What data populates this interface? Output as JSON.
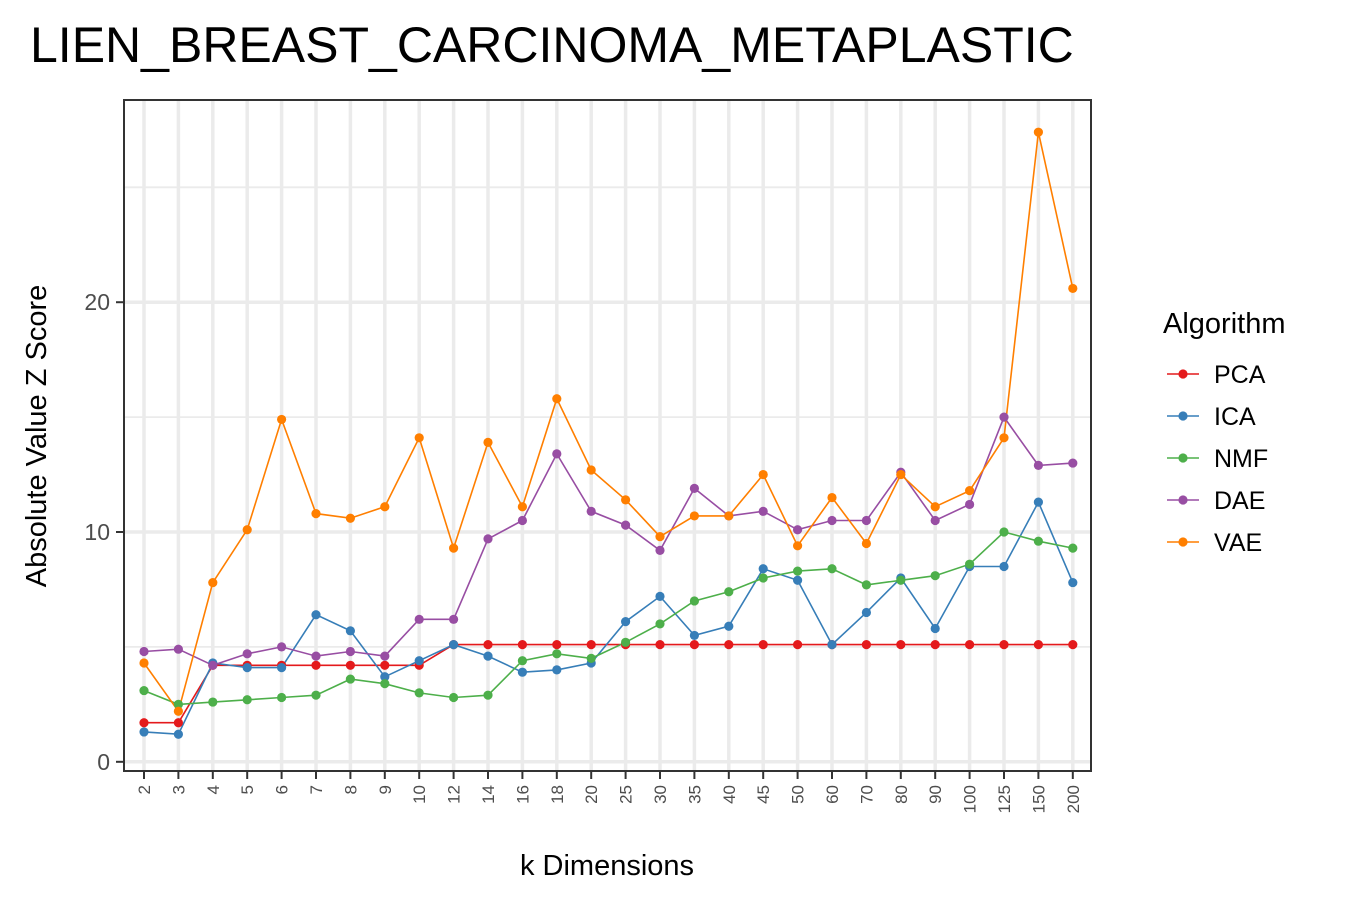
{
  "chart_data": {
    "type": "line",
    "title": "LIEN_BREAST_CARCINOMA_METAPLASTIC",
    "xlabel": "k Dimensions",
    "ylabel": "Absolute Value Z Score",
    "categories": [
      "2",
      "3",
      "4",
      "5",
      "6",
      "7",
      "8",
      "9",
      "10",
      "12",
      "14",
      "16",
      "18",
      "20",
      "25",
      "30",
      "35",
      "40",
      "45",
      "50",
      "60",
      "70",
      "80",
      "90",
      "100",
      "125",
      "150",
      "200"
    ],
    "ylim": [
      -0.4,
      28.8
    ],
    "yticks": [
      0,
      10,
      20
    ],
    "grid": true,
    "legend_title": "Algorithm",
    "legend_position": "right",
    "series": [
      {
        "name": "PCA",
        "color": "#e41a1c",
        "values": [
          1.7,
          1.7,
          4.2,
          4.2,
          4.2,
          4.2,
          4.2,
          4.2,
          4.2,
          5.1,
          5.1,
          5.1,
          5.1,
          5.1,
          5.1,
          5.1,
          5.1,
          5.1,
          5.1,
          5.1,
          5.1,
          5.1,
          5.1,
          5.1,
          5.1,
          5.1,
          5.1,
          5.1
        ]
      },
      {
        "name": "ICA",
        "color": "#377eb8",
        "values": [
          1.3,
          1.2,
          4.3,
          4.1,
          4.1,
          6.4,
          5.7,
          3.7,
          4.4,
          5.1,
          4.6,
          3.9,
          4.0,
          4.3,
          6.1,
          7.2,
          5.5,
          5.9,
          8.4,
          7.9,
          5.1,
          6.5,
          8.0,
          5.8,
          8.5,
          8.5,
          11.3,
          7.8
        ]
      },
      {
        "name": "NMF",
        "color": "#4daf4a",
        "values": [
          3.1,
          2.5,
          2.6,
          2.7,
          2.8,
          2.9,
          3.6,
          3.4,
          3.0,
          2.8,
          2.9,
          4.4,
          4.7,
          4.5,
          5.2,
          6.0,
          7.0,
          7.4,
          8.0,
          8.3,
          8.4,
          7.7,
          7.9,
          8.1,
          8.6,
          10.0,
          9.6,
          9.3
        ]
      },
      {
        "name": "DAE",
        "color": "#984ea3",
        "values": [
          4.8,
          4.9,
          4.2,
          4.7,
          5.0,
          4.6,
          4.8,
          4.6,
          6.2,
          6.2,
          9.7,
          10.5,
          13.4,
          10.9,
          10.3,
          9.2,
          11.9,
          10.7,
          10.9,
          10.1,
          10.5,
          10.5,
          12.6,
          10.5,
          11.2,
          15.0,
          12.9,
          13.0
        ]
      },
      {
        "name": "VAE",
        "color": "#ff7f00",
        "values": [
          4.3,
          2.2,
          7.8,
          10.1,
          14.9,
          10.8,
          10.6,
          11.1,
          14.1,
          9.3,
          13.9,
          11.1,
          15.8,
          12.7,
          11.4,
          9.8,
          10.7,
          10.7,
          12.5,
          9.4,
          11.5,
          9.5,
          12.5,
          11.1,
          11.8,
          14.1,
          27.4,
          20.6
        ]
      }
    ]
  }
}
